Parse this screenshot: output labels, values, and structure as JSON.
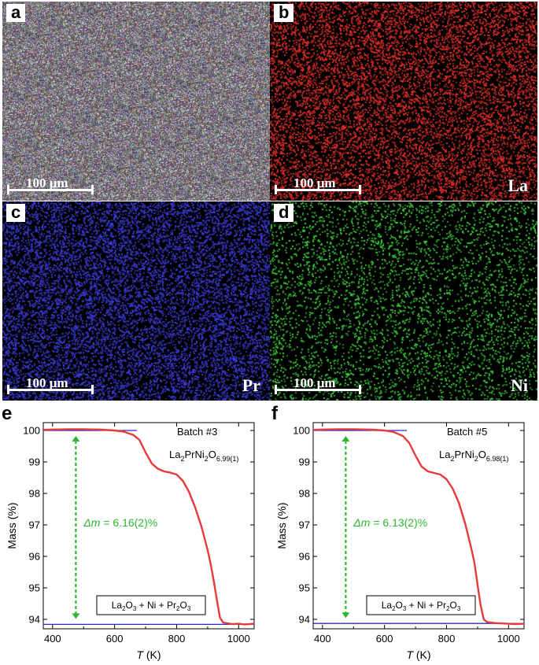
{
  "panels": [
    {
      "letter": "a",
      "scale": "100 μm",
      "element": "",
      "color": "mixed",
      "density": 1.0
    },
    {
      "letter": "b",
      "scale": "100 μm",
      "element": "La",
      "color": "#e8302c",
      "density": 0.32
    },
    {
      "letter": "c",
      "scale": "100 μm",
      "element": "Pr",
      "color": "#3d3de0",
      "density": 0.42
    },
    {
      "letter": "d",
      "scale": "100 μm",
      "element": "Ni",
      "color": "#3dd63d",
      "density": 0.14
    }
  ],
  "chart_data": [
    {
      "type": "line",
      "panel_label": "e",
      "batch": "Batch #3",
      "formula_main": "La",
      "formula_sub1": "2",
      "formula_mid": "PrNi",
      "formula_sub2": "2",
      "formula_o": "O",
      "formula_sub3": "6.99(1)",
      "delta_label": "Δm",
      "delta_value": " = 6.16(2)%",
      "product_box": [
        "La",
        "2",
        "O",
        "3",
        " + Ni + Pr",
        "2",
        "O",
        "3"
      ],
      "xlabel_var": "T",
      "xlabel_unit": " (K)",
      "ylabel": "Mass (%)",
      "xlim": [
        370,
        1050
      ],
      "ylim": [
        93.7,
        100.25
      ],
      "xticks": [
        400,
        600,
        800,
        1000
      ],
      "yticks": [
        94,
        95,
        96,
        97,
        98,
        99,
        100
      ],
      "reference_lines": [
        {
          "y": 100.0,
          "x": [
            370,
            672
          ]
        },
        {
          "y": 93.84,
          "x": [
            370,
            1050
          ]
        }
      ],
      "arrow": {
        "x": 475,
        "y": [
          100.0,
          93.84
        ]
      },
      "series": [
        {
          "color": "#e83a3a",
          "x": [
            370,
            400,
            450,
            500,
            550,
            600,
            630,
            660,
            680,
            700,
            720,
            740,
            760,
            780,
            800,
            820,
            840,
            860,
            880,
            900,
            910,
            920,
            930,
            940,
            950,
            960,
            980,
            1000,
            1020,
            1050
          ],
          "y": [
            100.02,
            100.03,
            100.04,
            100.04,
            100.03,
            100.0,
            99.96,
            99.86,
            99.7,
            99.3,
            98.95,
            98.78,
            98.7,
            98.66,
            98.6,
            98.4,
            98.05,
            97.55,
            96.95,
            96.2,
            95.75,
            95.2,
            94.6,
            94.05,
            93.9,
            93.88,
            93.85,
            93.86,
            93.84,
            93.86
          ]
        }
      ]
    },
    {
      "type": "line",
      "panel_label": "f",
      "batch": "Batch #5",
      "formula_main": "La",
      "formula_sub1": "2",
      "formula_mid": "PrNi",
      "formula_sub2": "2",
      "formula_o": "O",
      "formula_sub3": "6.98(1)",
      "delta_label": "Δm",
      "delta_value": " = 6.13(2)%",
      "product_box": [
        "La",
        "2",
        "O",
        "3",
        " + Ni + Pr",
        "2",
        "O",
        "3"
      ],
      "xlabel_var": "T",
      "xlabel_unit": " (K)",
      "ylabel": "Mass (%)",
      "xlim": [
        370,
        1050
      ],
      "ylim": [
        93.7,
        100.25
      ],
      "xticks": [
        400,
        600,
        800,
        1000
      ],
      "yticks": [
        94,
        95,
        96,
        97,
        98,
        99,
        100
      ],
      "reference_lines": [
        {
          "y": 100.0,
          "x": [
            370,
            672
          ]
        },
        {
          "y": 93.87,
          "x": [
            370,
            1050
          ]
        }
      ],
      "arrow": {
        "x": 475,
        "y": [
          100.0,
          93.87
        ]
      },
      "series": [
        {
          "color": "#e83a3a",
          "x": [
            370,
            400,
            450,
            500,
            550,
            600,
            630,
            660,
            680,
            700,
            720,
            740,
            760,
            780,
            800,
            820,
            840,
            860,
            880,
            890,
            900,
            910,
            920,
            930,
            940,
            960,
            980,
            1000,
            1020,
            1050
          ],
          "y": [
            100.02,
            100.03,
            100.04,
            100.04,
            100.03,
            100.0,
            99.95,
            99.82,
            99.6,
            99.2,
            98.85,
            98.7,
            98.65,
            98.6,
            98.45,
            98.15,
            97.7,
            97.05,
            96.25,
            95.8,
            95.1,
            94.45,
            94.0,
            93.92,
            93.9,
            93.88,
            93.87,
            93.86,
            93.85,
            93.86
          ]
        }
      ]
    }
  ]
}
